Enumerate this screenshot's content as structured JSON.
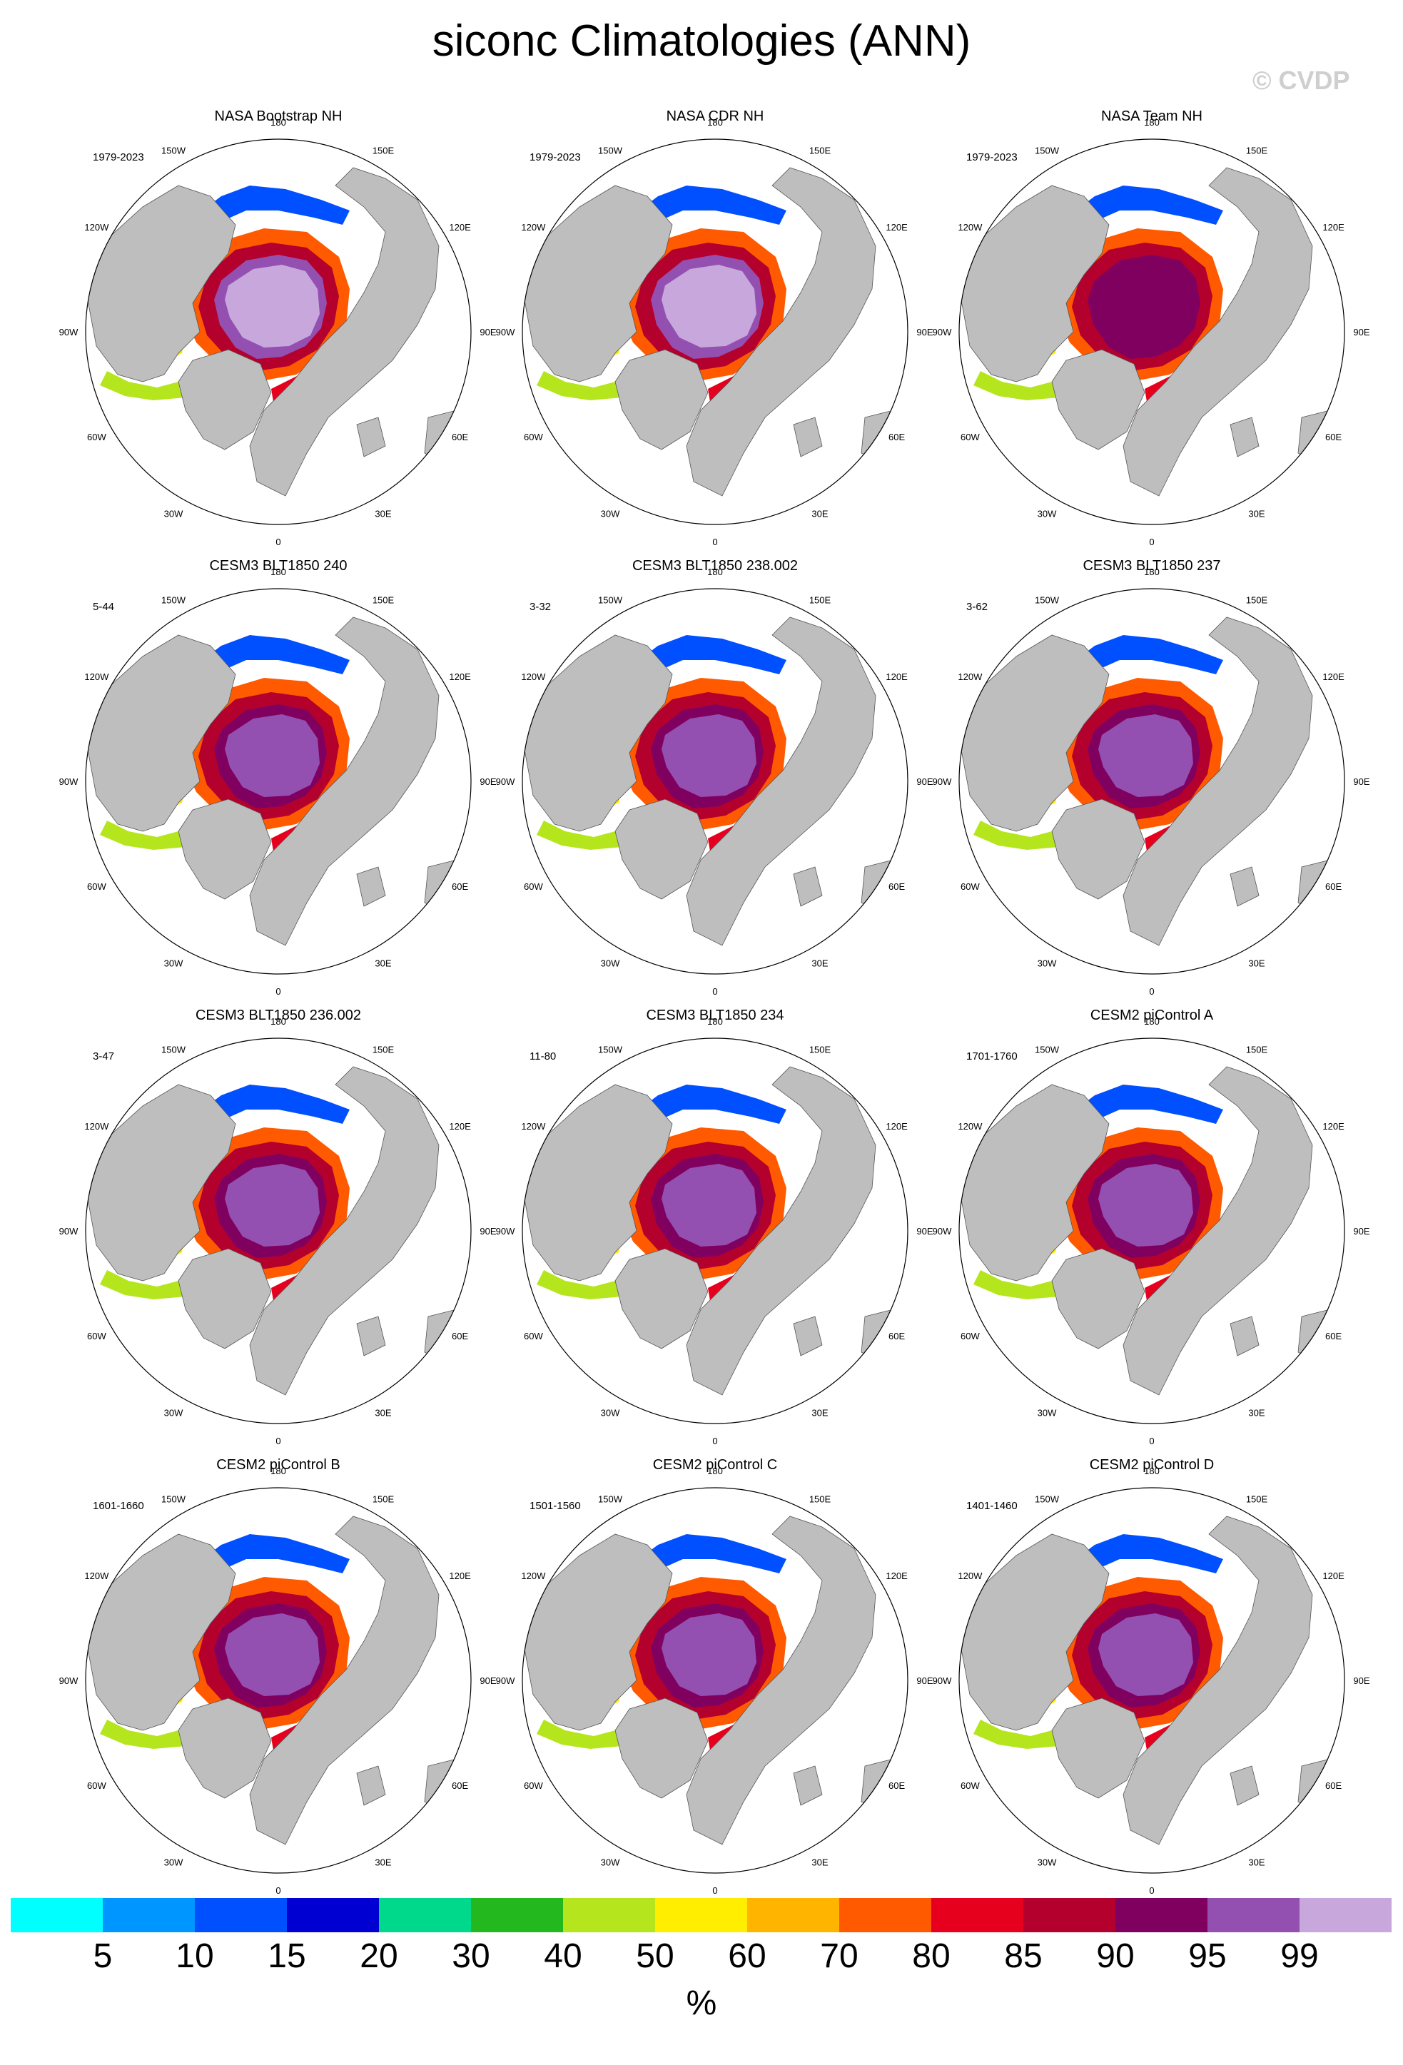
{
  "figure": {
    "title": "siconc Climatologies (ANN)",
    "watermark": "© CVDP"
  },
  "longitude_labels": [
    "180",
    "150W",
    "120W",
    "90W",
    "60W",
    "30W",
    "0",
    "30E",
    "60E",
    "90E",
    "120E",
    "150E"
  ],
  "panels": [
    {
      "title": "NASA Bootstrap NH",
      "period": "1979-2023",
      "style": "obs"
    },
    {
      "title": "NASA CDR NH",
      "period": "1979-2023",
      "style": "cdr"
    },
    {
      "title": "NASA Team NH",
      "period": "1979-2023",
      "style": "team"
    },
    {
      "title": "CESM3 BLT1850 240",
      "period": "5-44",
      "style": "model"
    },
    {
      "title": "CESM3 BLT1850 238.002",
      "period": "3-32",
      "style": "model"
    },
    {
      "title": "CESM3 BLT1850 237",
      "period": "3-62",
      "style": "model"
    },
    {
      "title": "CESM3 BLT1850 236.002",
      "period": "3-47",
      "style": "model"
    },
    {
      "title": "CESM3 BLT1850 234",
      "period": "11-80",
      "style": "model"
    },
    {
      "title": "CESM2 piControl A",
      "period": "1701-1760",
      "style": "cesm2"
    },
    {
      "title": "CESM2 piControl B",
      "period": "1601-1660",
      "style": "cesm2"
    },
    {
      "title": "CESM2 piControl C",
      "period": "1501-1560",
      "style": "cesm2"
    },
    {
      "title": "CESM2 piControl D",
      "period": "1401-1460",
      "style": "cesm2"
    }
  ],
  "colorbar": {
    "colors": [
      "#00ffff",
      "#0096ff",
      "#0050ff",
      "#0000d2",
      "#00d98c",
      "#22b81e",
      "#b5e61d",
      "#ffee00",
      "#ffb400",
      "#ff5a00",
      "#e6001e",
      "#b4002d",
      "#800060",
      "#9450b0",
      "#c8a8dc"
    ],
    "labels": [
      "5",
      "10",
      "15",
      "20",
      "30",
      "40",
      "50",
      "60",
      "70",
      "80",
      "85",
      "90",
      "95",
      "99"
    ],
    "units": "%"
  },
  "map_colors": {
    "land": "#bebebe",
    "ocean": "#ffffff"
  }
}
